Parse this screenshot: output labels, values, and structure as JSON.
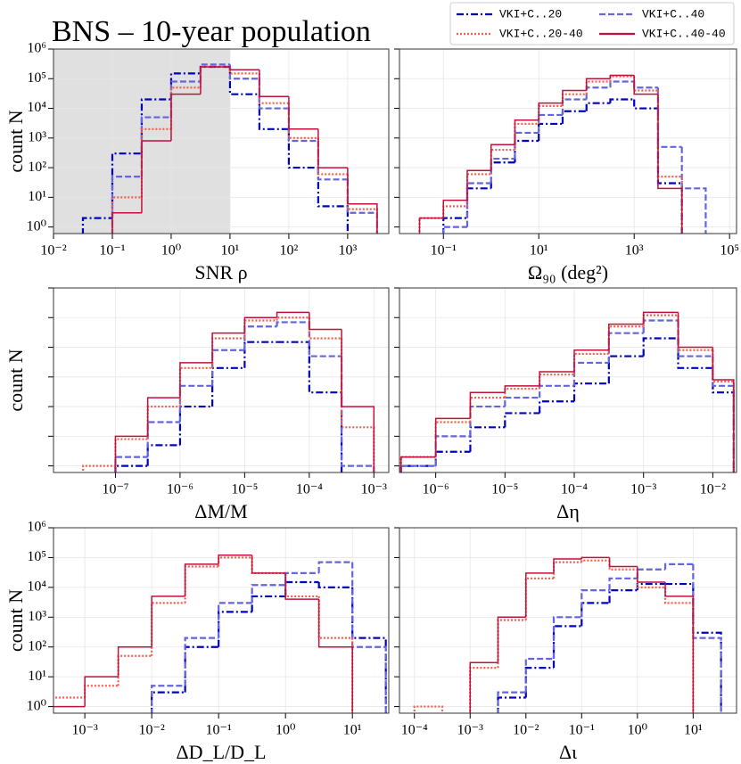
{
  "chart_data": [
    {
      "type": "histogram",
      "title": "BNS – 10-year population",
      "xlabel": "SNR ρ",
      "ylabel": "count  N",
      "log_x": true,
      "log_y": true,
      "grid": true,
      "shaded_span": [
        0.01,
        10
      ],
      "shade_color": "#e0e0e0",
      "legend": "upper right",
      "xlim": [
        0.01,
        5000
      ],
      "ylim": [
        0.6,
        1000000
      ],
      "xticks": [
        {
          "value": 0.01,
          "label": "10⁻²"
        },
        {
          "value": 0.1,
          "label": "10⁻¹"
        },
        {
          "value": 1,
          "label": "10⁰"
        },
        {
          "value": 10,
          "label": "10¹"
        },
        {
          "value": 100,
          "label": "10²"
        },
        {
          "value": 1000,
          "label": "10³"
        }
      ],
      "yticks": [
        {
          "value": 1,
          "label": "10⁰"
        },
        {
          "value": 10,
          "label": "10¹"
        },
        {
          "value": 100,
          "label": "10²"
        },
        {
          "value": 1000,
          "label": "10³"
        },
        {
          "value": 10000,
          "label": "10⁴"
        },
        {
          "value": 100000,
          "label": "10⁵"
        },
        {
          "value": 1000000,
          "label": "10⁶"
        }
      ],
      "bins": [
        0.0316,
        0.1,
        0.316,
        1,
        3.16,
        10,
        31.6,
        100,
        316,
        1000,
        3162
      ],
      "series": [
        {
          "name": "VKI+C..20",
          "color": "#0000c0",
          "linestyle": "dashdot",
          "values": [
            2,
            300,
            20000,
            150000,
            250000,
            30000,
            2000,
            100,
            5,
            null
          ]
        },
        {
          "name": "VKI+C..40",
          "color": "#6464dc",
          "linestyle": "dashed",
          "values": [
            null,
            50,
            5000,
            80000,
            300000,
            100000,
            10000,
            800,
            40,
            3
          ]
        },
        {
          "name": "VKI+C..20-40",
          "color": "#f0604c",
          "linestyle": "dotted",
          "values": [
            null,
            10,
            2000,
            50000,
            250000,
            150000,
            15000,
            1000,
            60,
            4
          ]
        },
        {
          "name": "VKI+C..40-40",
          "color": "#c0103c",
          "linestyle": "solid",
          "values": [
            null,
            3,
            800,
            30000,
            250000,
            200000,
            25000,
            2000,
            100,
            6
          ]
        }
      ]
    },
    {
      "type": "histogram",
      "xlabel": "Ω₉₀ (deg²)",
      "log_x": true,
      "log_y": true,
      "grid": true,
      "xlim": [
        0.012,
        140000
      ],
      "ylim": [
        0.6,
        1000000
      ],
      "xticks": [
        {
          "value": 0.1,
          "label": "10⁻¹"
        },
        {
          "value": 10,
          "label": "10¹"
        },
        {
          "value": 1000,
          "label": "10³"
        },
        {
          "value": 100000,
          "label": "10⁵"
        }
      ],
      "yticks": [
        1,
        10,
        100,
        1000,
        10000,
        100000,
        1000000
      ],
      "bins": [
        0.0316,
        0.1,
        0.316,
        1,
        3.16,
        10,
        31.6,
        100,
        316,
        1000,
        3162,
        10000,
        31623
      ],
      "series": [
        {
          "name": "VKI+C..20",
          "color": "#0000c0",
          "linestyle": "dashdot",
          "values": [
            null,
            2,
            20,
            150,
            800,
            3000,
            8000,
            15000,
            20000,
            10000,
            30,
            null
          ]
        },
        {
          "name": "VKI+C..40",
          "color": "#6464dc",
          "linestyle": "dashed",
          "values": [
            null,
            1,
            30,
            200,
            1500,
            6000,
            20000,
            50000,
            80000,
            50000,
            500,
            20
          ]
        },
        {
          "name": "VKI+C..20-40",
          "color": "#f0604c",
          "linestyle": "dotted",
          "values": [
            2,
            5,
            60,
            400,
            3000,
            12000,
            30000,
            80000,
            120000,
            40000,
            50,
            null
          ]
        },
        {
          "name": "VKI+C..40-40",
          "color": "#c0103c",
          "linestyle": "solid",
          "values": [
            2,
            8,
            80,
            600,
            4000,
            15000,
            40000,
            100000,
            130000,
            30000,
            20,
            null
          ]
        }
      ]
    },
    {
      "type": "histogram",
      "xlabel": "ΔM/M",
      "ylabel": "count  N",
      "log_x": true,
      "log_y": true,
      "grid": true,
      "xlim": [
        1.1e-08,
        0.0017
      ],
      "ylim": [
        0.6,
        1000000
      ],
      "xticks": [
        {
          "value": 1e-07,
          "label": "10⁻⁷"
        },
        {
          "value": 1e-06,
          "label": "10⁻⁶"
        },
        {
          "value": 1e-05,
          "label": "10⁻⁵"
        },
        {
          "value": 0.0001,
          "label": "10⁻⁴"
        },
        {
          "value": 0.001,
          "label": "10⁻³"
        }
      ],
      "yticks": [
        1,
        10,
        100,
        1000,
        10000,
        100000,
        1000000
      ],
      "bins": [
        3.16e-08,
        1e-07,
        3.16e-07,
        1e-06,
        3.16e-06,
        1e-05,
        3.16e-05,
        0.0001,
        0.000316,
        0.001
      ],
      "series": [
        {
          "name": "VKI+C..20",
          "color": "#0000c0",
          "linestyle": "dashdot",
          "values": [
            null,
            1,
            5,
            100,
            2000,
            15000,
            15000,
            300,
            null
          ]
        },
        {
          "name": "VKI+C..40",
          "color": "#6464dc",
          "linestyle": "dashed",
          "values": [
            null,
            2,
            30,
            500,
            8000,
            50000,
            70000,
            5000,
            1
          ]
        },
        {
          "name": "VKI+C..20-40",
          "color": "#f0604c",
          "linestyle": "dotted",
          "values": [
            1,
            8,
            100,
            2000,
            20000,
            80000,
            100000,
            20000,
            20
          ]
        },
        {
          "name": "VKI+C..40-40",
          "color": "#c0103c",
          "linestyle": "solid",
          "values": [
            null,
            10,
            200,
            3000,
            30000,
            100000,
            150000,
            40000,
            100
          ]
        }
      ]
    },
    {
      "type": "histogram",
      "xlabel": "Δη",
      "log_x": true,
      "log_y": true,
      "grid": true,
      "xlim": [
        3e-07,
        0.022
      ],
      "ylim": [
        0.6,
        1000000
      ],
      "xticks": [
        {
          "value": 1e-06,
          "label": "10⁻⁶"
        },
        {
          "value": 1e-05,
          "label": "10⁻⁵"
        },
        {
          "value": 0.0001,
          "label": "10⁻⁴"
        },
        {
          "value": 0.001,
          "label": "10⁻³"
        },
        {
          "value": 0.01,
          "label": "10⁻²"
        }
      ],
      "yticks": [
        1,
        10,
        100,
        1000,
        10000,
        100000,
        1000000
      ],
      "bins": [
        3.16e-07,
        1e-06,
        3.16e-06,
        1e-05,
        3.16e-05,
        0.0001,
        0.000316,
        0.001,
        0.00316,
        0.01,
        0.02
      ],
      "series": [
        {
          "name": "VKI+C..20",
          "color": "#0000c0",
          "linestyle": "dashdot",
          "values": [
            1,
            3,
            20,
            60,
            150,
            600,
            5000,
            20000,
            2000,
            300
          ]
        },
        {
          "name": "VKI+C..40",
          "color": "#6464dc",
          "linestyle": "dashed",
          "values": [
            1,
            10,
            100,
            200,
            500,
            3000,
            30000,
            80000,
            5000,
            500
          ]
        },
        {
          "name": "VKI+C..20-40",
          "color": "#f0604c",
          "linestyle": "dotted",
          "values": [
            2,
            30,
            200,
            400,
            1200,
            6000,
            50000,
            120000,
            8000,
            700
          ]
        },
        {
          "name": "VKI+C..40-40",
          "color": "#c0103c",
          "linestyle": "solid",
          "values": [
            2,
            40,
            300,
            500,
            1500,
            8000,
            60000,
            150000,
            10000,
            800
          ]
        }
      ]
    },
    {
      "type": "histogram",
      "xlabel": "ΔD_L/D_L",
      "ylabel": "count  N",
      "log_x": true,
      "log_y": true,
      "grid": true,
      "xlim": [
        0.00034,
        35
      ],
      "ylim": [
        0.6,
        1000000
      ],
      "xticks": [
        {
          "value": 0.001,
          "label": "10⁻³"
        },
        {
          "value": 0.01,
          "label": "10⁻²"
        },
        {
          "value": 0.1,
          "label": "10⁻¹"
        },
        {
          "value": 1,
          "label": "10⁰"
        },
        {
          "value": 10,
          "label": "10¹"
        }
      ],
      "yticks": [
        {
          "value": 1,
          "label": "10⁰"
        },
        {
          "value": 10,
          "label": "10¹"
        },
        {
          "value": 100,
          "label": "10²"
        },
        {
          "value": 1000,
          "label": "10³"
        },
        {
          "value": 10000,
          "label": "10⁴"
        },
        {
          "value": 100000,
          "label": "10⁵"
        },
        {
          "value": 1000000,
          "label": "10⁶"
        }
      ],
      "bins": [
        0.000316,
        0.001,
        0.00316,
        0.01,
        0.0316,
        0.1,
        0.316,
        1,
        3.16,
        10,
        31.6
      ],
      "series": [
        {
          "name": "VKI+C..20",
          "color": "#0000c0",
          "linestyle": "dashdot",
          "values": [
            null,
            null,
            null,
            3,
            100,
            1500,
            5000,
            15000,
            10000,
            200
          ]
        },
        {
          "name": "VKI+C..40",
          "color": "#6464dc",
          "linestyle": "dashed",
          "values": [
            null,
            null,
            null,
            5,
            200,
            3000,
            12000,
            30000,
            70000,
            100
          ]
        },
        {
          "name": "VKI+C..20-40",
          "color": "#f0604c",
          "linestyle": "dotted",
          "values": [
            2,
            5,
            50,
            3000,
            50000,
            100000,
            30000,
            5000,
            200,
            null
          ]
        },
        {
          "name": "VKI+C..40-40",
          "color": "#c0103c",
          "linestyle": "solid",
          "values": [
            1,
            10,
            100,
            5000,
            60000,
            120000,
            30000,
            4000,
            100,
            null
          ]
        }
      ]
    },
    {
      "type": "histogram",
      "xlabel": "Δι",
      "log_x": true,
      "log_y": true,
      "grid": true,
      "xlim": [
        5.4e-05,
        60
      ],
      "ylim": [
        0.6,
        1000000
      ],
      "xticks": [
        {
          "value": 0.0001,
          "label": "10⁻⁴"
        },
        {
          "value": 0.001,
          "label": "10⁻³"
        },
        {
          "value": 0.01,
          "label": "10⁻²"
        },
        {
          "value": 0.1,
          "label": "10⁻¹"
        },
        {
          "value": 1,
          "label": "10⁰"
        },
        {
          "value": 10,
          "label": "10¹"
        }
      ],
      "yticks": [
        1,
        10,
        100,
        1000,
        10000,
        100000,
        1000000
      ],
      "bins": [
        0.0001,
        0.000316,
        0.001,
        0.00316,
        0.01,
        0.0316,
        0.1,
        0.316,
        1,
        3.16,
        10,
        31.6
      ],
      "series": [
        {
          "name": "VKI+C..20",
          "color": "#0000c0",
          "linestyle": "dashdot",
          "values": [
            null,
            null,
            null,
            2,
            20,
            500,
            3000,
            8000,
            13000,
            13000,
            300
          ]
        },
        {
          "name": "VKI+C..40",
          "color": "#6464dc",
          "linestyle": "dashed",
          "values": [
            null,
            null,
            null,
            3,
            40,
            1000,
            8000,
            20000,
            40000,
            60000,
            200
          ]
        },
        {
          "name": "VKI+C..20-40",
          "color": "#f0604c",
          "linestyle": "dotted",
          "values": [
            1,
            null,
            20,
            800,
            20000,
            70000,
            80000,
            40000,
            10000,
            3000,
            null
          ]
        },
        {
          "name": "VKI+C..40-40",
          "color": "#c0103c",
          "linestyle": "solid",
          "values": [
            null,
            null,
            30,
            1000,
            30000,
            90000,
            100000,
            50000,
            15000,
            5000,
            null
          ]
        }
      ]
    }
  ]
}
